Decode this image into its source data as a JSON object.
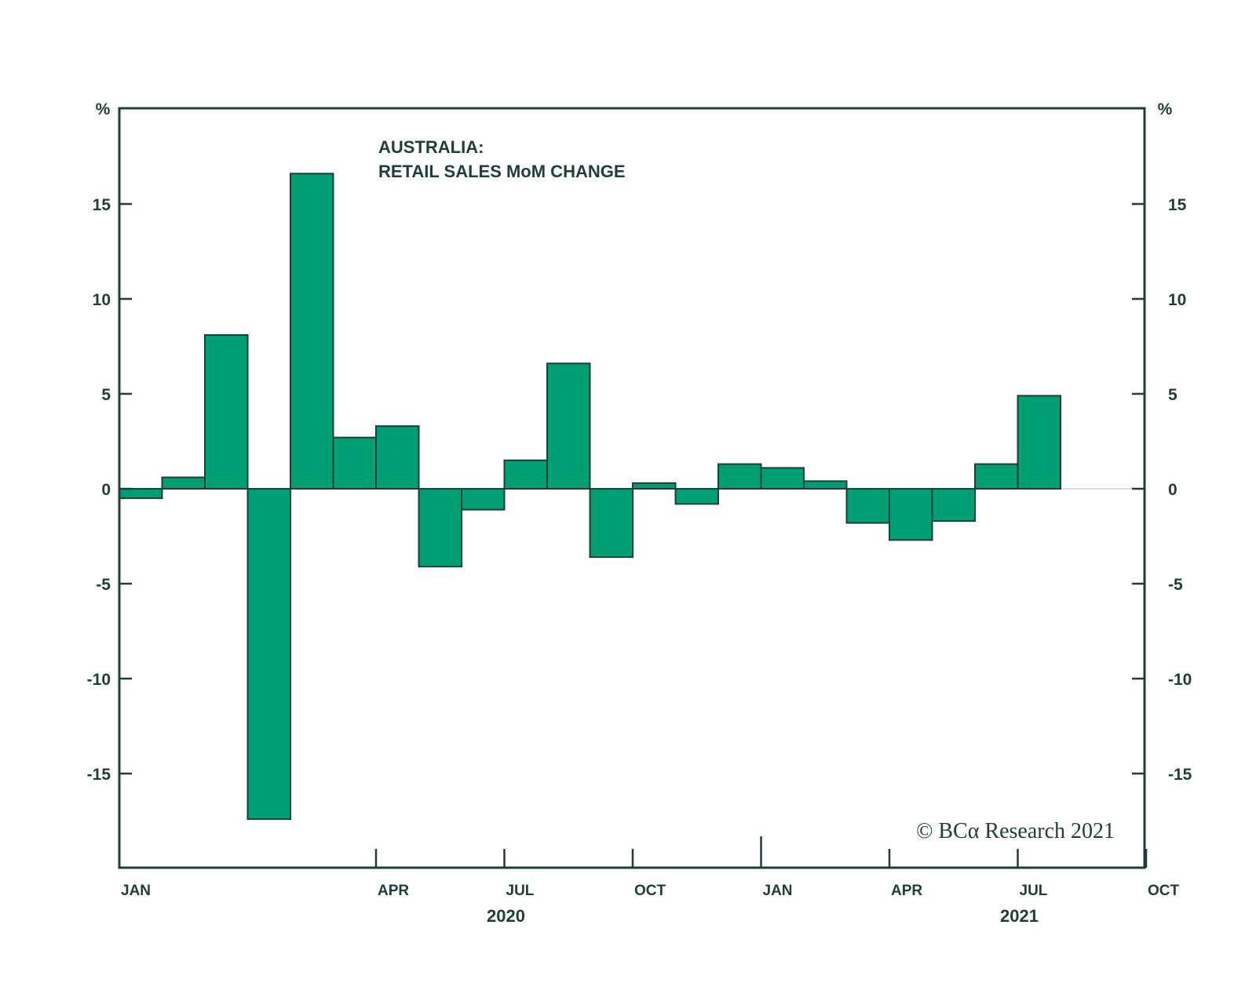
{
  "colors": {
    "bar": "#009e73",
    "axis": "#1f3d3a",
    "zero_line": "#d0d0d0"
  },
  "chart_data": {
    "type": "bar",
    "title": [
      "AUSTRALIA:",
      "RETAIL SALES MoM CHANGE"
    ],
    "ylabel_left": "%",
    "ylabel_right": "%",
    "ylim": [
      -20,
      20
    ],
    "yticks": [
      -15,
      -10,
      -5,
      0,
      5,
      10,
      15
    ],
    "categories": [
      "2020-01",
      "2020-02",
      "2020-03",
      "2020-04",
      "2020-05",
      "2020-06",
      "2020-07",
      "2020-08",
      "2020-09",
      "2020-10",
      "2020-11",
      "2020-12",
      "2021-01",
      "2021-02",
      "2021-03",
      "2021-04",
      "2021-05",
      "2021-06",
      "2021-07",
      "2021-08",
      "2021-09",
      "2021-10",
      "2021-11",
      "2021-12"
    ],
    "values": [
      -0.5,
      0.6,
      8.1,
      -17.4,
      16.6,
      2.7,
      3.3,
      -4.1,
      -1.1,
      1.5,
      6.6,
      -3.6,
      0.3,
      -0.8,
      1.3,
      1.1,
      0.4,
      -1.8,
      -2.7,
      -1.7,
      1.3,
      4.9,
      null,
      null
    ],
    "month_ticks": [
      {
        "month": "2020-01",
        "label": "JAN"
      },
      {
        "month": "2020-04",
        "label": "APR"
      },
      {
        "month": "2020-07",
        "label": "JUL"
      },
      {
        "month": "2020-10",
        "label": "OCT"
      },
      {
        "month": "2021-01",
        "label": "JAN"
      },
      {
        "month": "2021-04",
        "label": "APR"
      },
      {
        "month": "2021-07",
        "label": "JUL"
      },
      {
        "month": "2021-10",
        "label": "OCT"
      }
    ],
    "years": [
      {
        "label": "2020",
        "center_month": "2020-07"
      },
      {
        "label": "2021",
        "center_month": "2021-07"
      }
    ],
    "copyright": "© BCα Research 2021"
  }
}
